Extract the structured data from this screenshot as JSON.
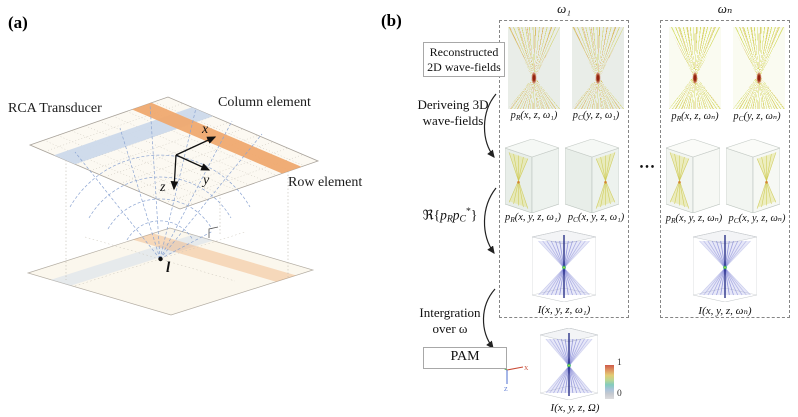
{
  "panel_a": {
    "tag": "(a)",
    "transducer_label": "RCA Transducer",
    "column_label": "Column element",
    "row_label": "Row element",
    "axis_x": "x",
    "axis_y": "y",
    "axis_z": "z",
    "focal_point": "l",
    "colors": {
      "row_band": "#efa96f",
      "column_band": "#ccd9ea"
    }
  },
  "panel_b": {
    "tag": "(b)",
    "steps": {
      "reconstructed": {
        "line1": "Reconstructed",
        "line2": "2D wave-fields"
      },
      "deriving": {
        "line1": "Deriveing 3D",
        "line2": "wave-fields"
      },
      "real_part": {
        "pre": "ℜ{",
        "b1": "p",
        "s1": "R",
        "b2": "p",
        "s2": "C",
        "sup": "*",
        "post": "}"
      },
      "integration": {
        "line1": "Intergration",
        "line2": "over ω"
      },
      "pam": "PAM"
    },
    "blocks": [
      {
        "header": "ω₁",
        "wave2d": [
          {
            "b": "p",
            "s": "R",
            "r": "(x, z, ω₁)"
          },
          {
            "b": "p",
            "s": "C",
            "r": "(y, z, ω₁)"
          }
        ],
        "wave3d": [
          {
            "b": "p",
            "s": "R",
            "r": "(x, y, z, ω₁)"
          },
          {
            "b": "p",
            "s": "C",
            "r": "(x, y, z, ω₁)"
          }
        ],
        "intensity": {
          "b": "I",
          "r": "(x, y, z, ω₁)"
        }
      },
      {
        "header": "ωₙ",
        "wave2d": [
          {
            "b": "p",
            "s": "R",
            "r": "(x, z, ωₙ)"
          },
          {
            "b": "p",
            "s": "C",
            "r": "(y, z, ωₙ)"
          }
        ],
        "wave3d": [
          {
            "b": "p",
            "s": "R",
            "r": "(x, y, z, ωₙ)"
          },
          {
            "b": "p",
            "s": "C",
            "r": "(x, y, z, ωₙ)"
          }
        ],
        "intensity": {
          "b": "I",
          "r": "(x, y, z, ωₙ)"
        }
      }
    ],
    "ellipsis": "•••",
    "final": {
      "label": {
        "b": "I",
        "r": "(x, y, z, Ω)"
      },
      "axes": {
        "x": "X",
        "y": "Y",
        "z": "Z"
      },
      "colorbar": {
        "max": "1",
        "min": "0"
      }
    },
    "colors": {
      "fan_yellow": "#caca42",
      "focus_red": "#93230f",
      "intensity_blue": "#1b2280",
      "waist_green": "#2fae68"
    }
  }
}
